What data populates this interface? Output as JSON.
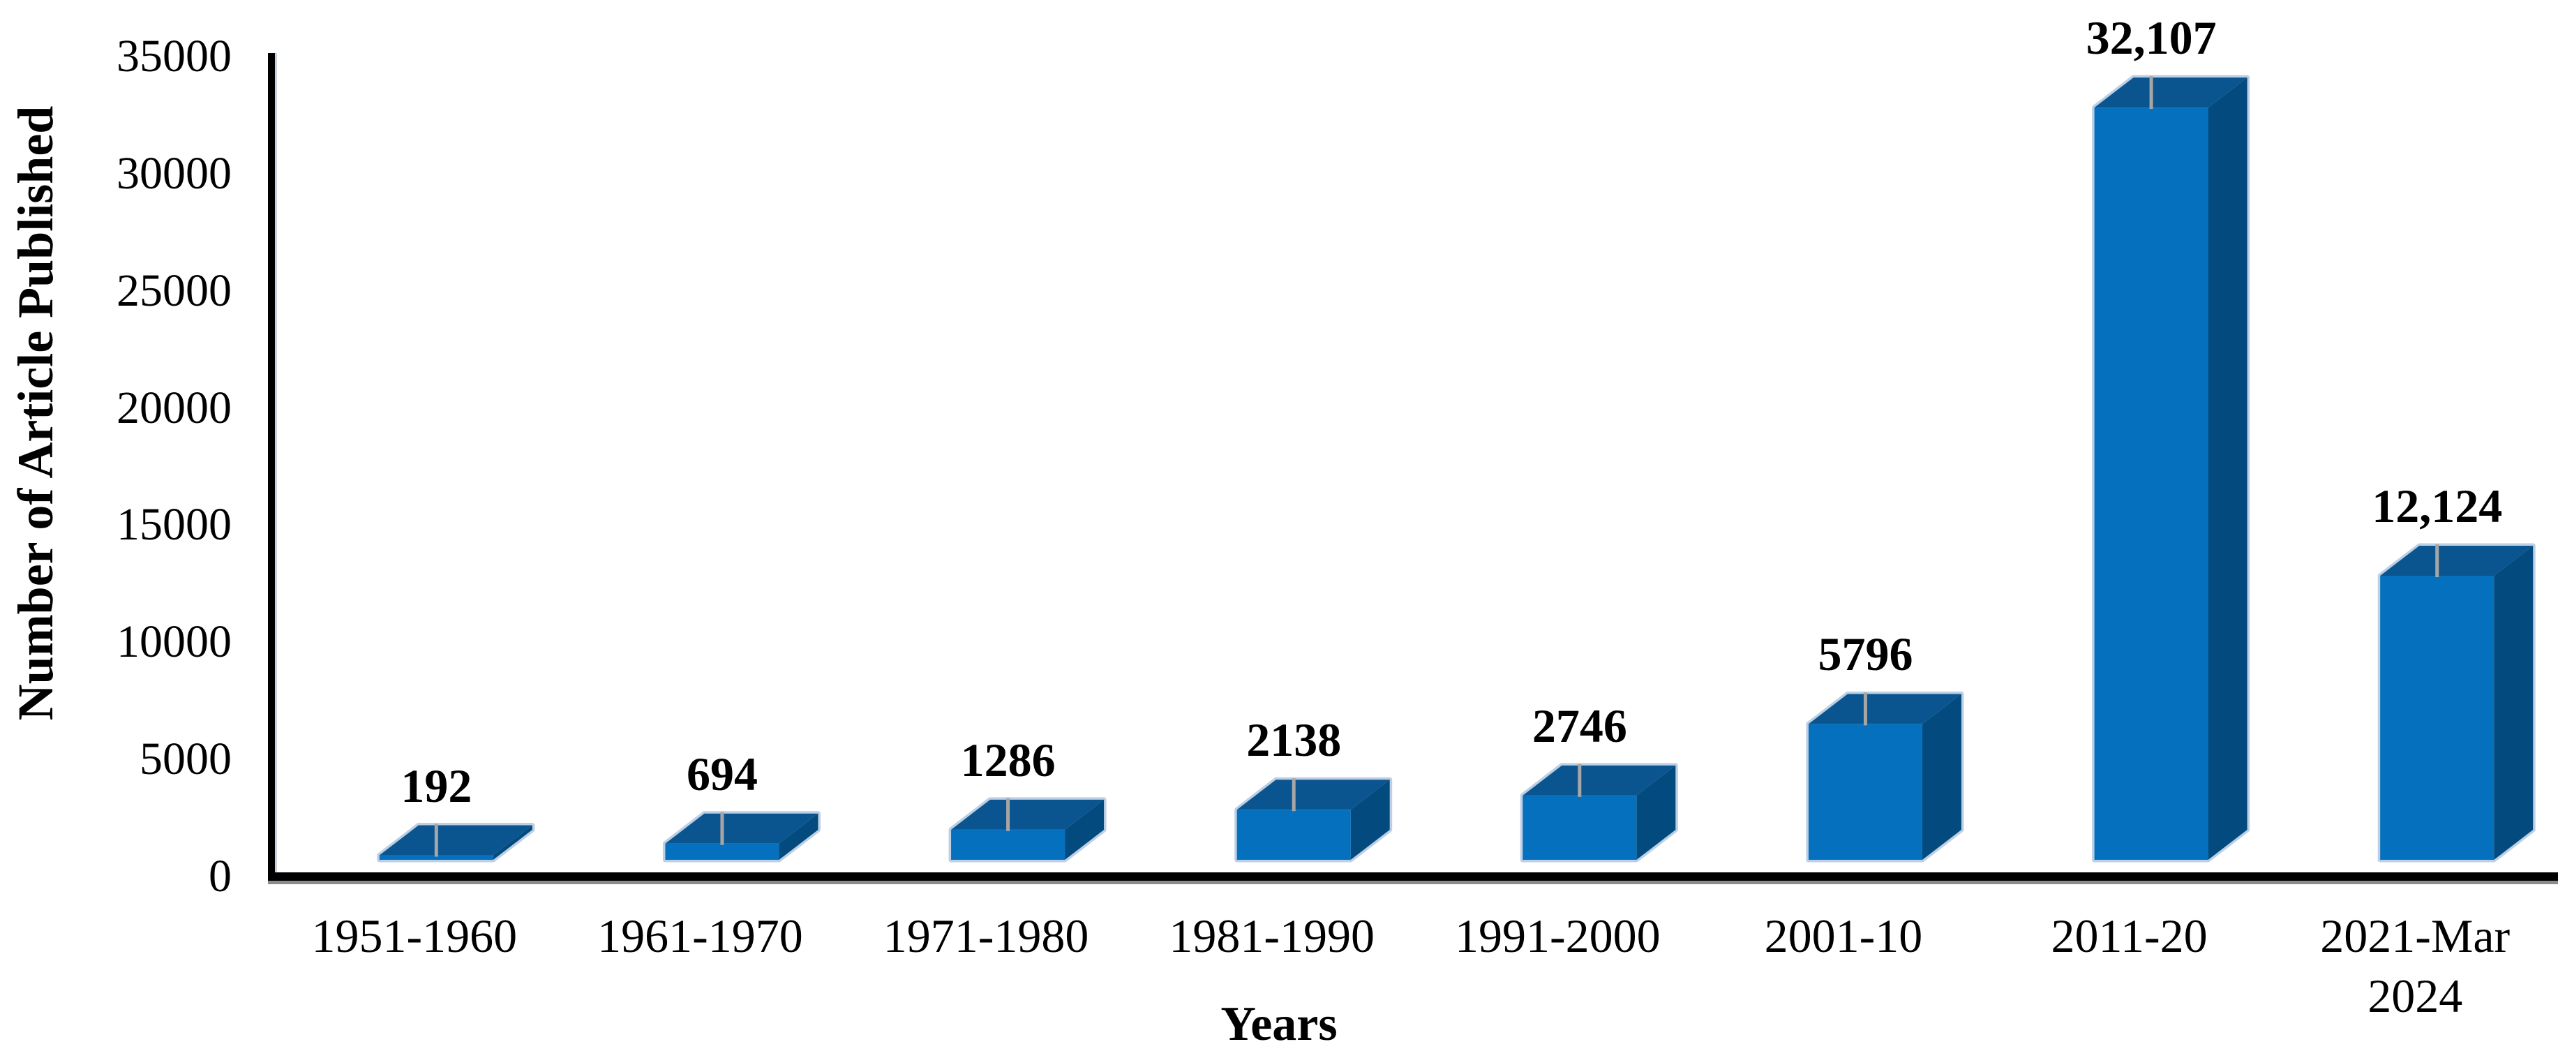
{
  "chart_data": {
    "type": "bar",
    "style": "3d-column",
    "title": "",
    "xlabel": "Years",
    "ylabel": "Number of Article Published",
    "categories": [
      "1951-1960",
      "1961-1970",
      "1971-1980",
      "1981-1990",
      "1991-2000",
      "2001-10",
      "2011-20",
      "2021-Mar\n2024"
    ],
    "values": [
      192,
      694,
      1286,
      2138,
      2746,
      5796,
      32107,
      12124
    ],
    "value_labels": [
      "192",
      "694",
      "1286",
      "2138",
      "2746",
      "5796",
      "32,107",
      "12,124"
    ],
    "y_ticks": [
      0,
      5000,
      10000,
      15000,
      20000,
      25000,
      30000,
      35000
    ],
    "ylim": [
      0,
      35000
    ],
    "grid": false,
    "legend": false,
    "colors": {
      "bar_front": "#0571BE",
      "bar_top": "#0A5590",
      "bar_side": "#034A7E",
      "bar_edge_highlight": "#BCCFE4",
      "marker_tick": "#A6A6A6",
      "axis_line": "#000000",
      "text": "#000000",
      "background": "#FFFFFF"
    }
  }
}
